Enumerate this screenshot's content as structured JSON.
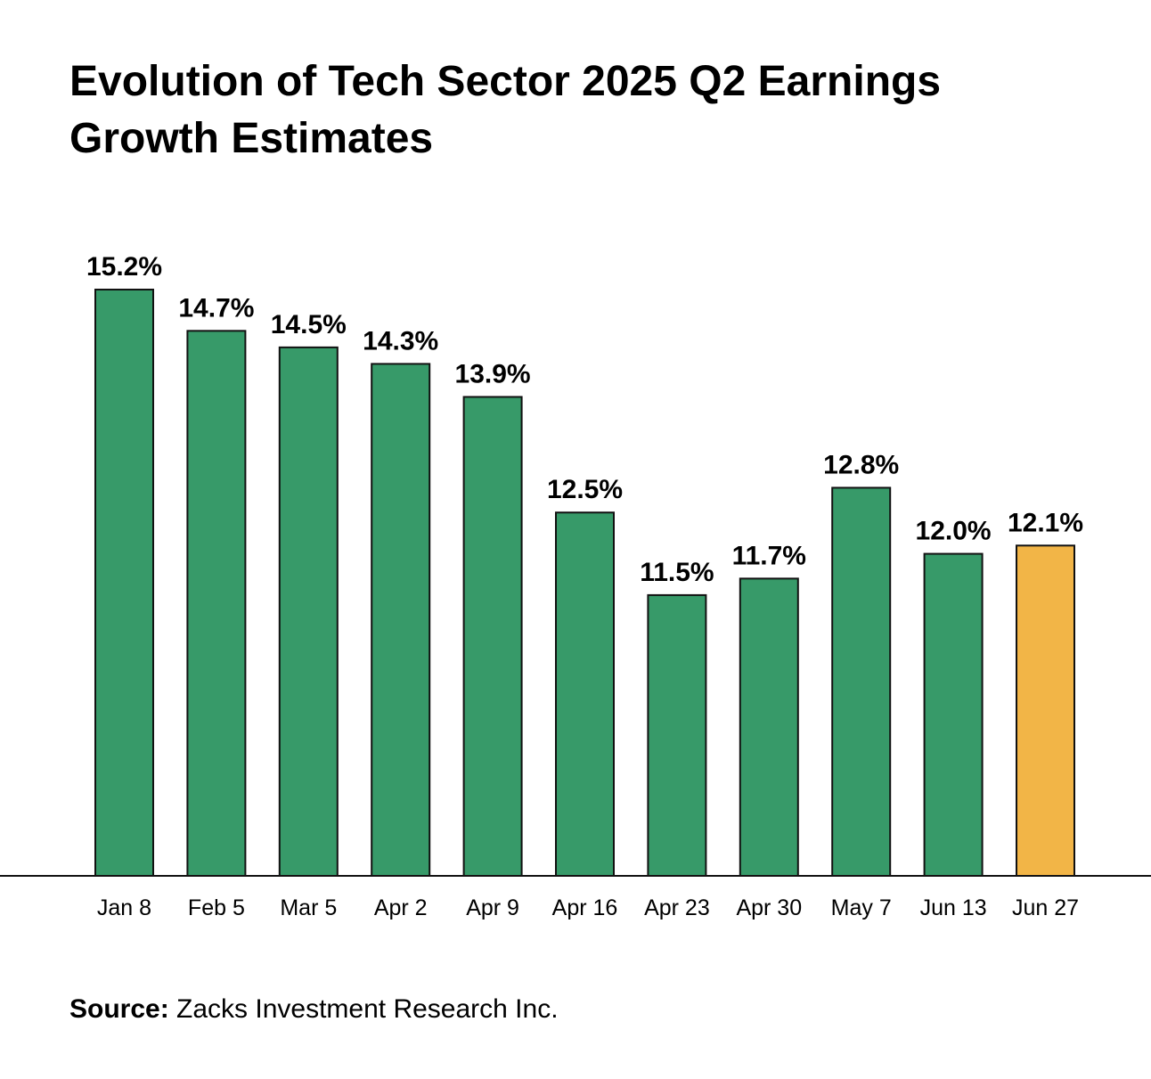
{
  "chart_data": {
    "type": "bar",
    "title": "Evolution of Tech Sector 2025 Q2 Earnings Growth Estimates",
    "categories": [
      "Jan 8",
      "Feb 5",
      "Mar 5",
      "Apr 2",
      "Apr 9",
      "Apr 16",
      "Apr 23",
      "Apr 30",
      "May 7",
      "Jun 13",
      "Jun 27"
    ],
    "values": [
      15.2,
      14.7,
      14.5,
      14.3,
      13.9,
      12.5,
      11.5,
      11.7,
      12.8,
      12.0,
      12.1
    ],
    "labels": [
      "15.2%",
      "14.7%",
      "14.5%",
      "14.3%",
      "13.9%",
      "12.5%",
      "11.5%",
      "11.7%",
      "12.8%",
      "12.0%",
      "12.1%"
    ],
    "highlight_index": 10,
    "xlabel": "",
    "ylabel": "",
    "ylim": [
      8.1,
      15.2
    ],
    "grid": false,
    "colors": {
      "bar": "#379a69",
      "highlight": "#f2b547",
      "stroke": "#111111"
    }
  },
  "source": {
    "label": "Source:",
    "text": " Zacks Investment Research Inc."
  }
}
